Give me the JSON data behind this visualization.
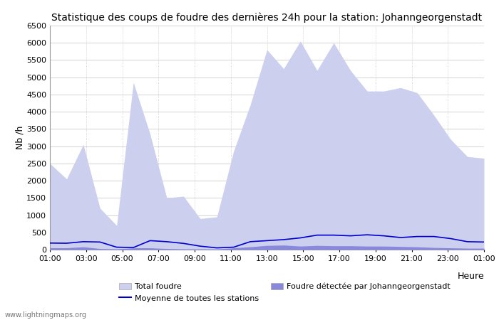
{
  "title": "Statistique des coups de foudre des dernières 24h pour la station: Johanngeorgenstadt",
  "xlabel": "Heure",
  "ylabel": "Nb /h",
  "watermark": "www.lightningmaps.org",
  "ylim": [
    0,
    6500
  ],
  "yticks": [
    0,
    500,
    1000,
    1500,
    2000,
    2500,
    3000,
    3500,
    4000,
    4500,
    5000,
    5500,
    6000,
    6500
  ],
  "hour_labels": [
    "01:00",
    "03:00",
    "05:00",
    "07:00",
    "09:00",
    "11:00",
    "13:00",
    "15:00",
    "17:00",
    "19:00",
    "21:00",
    "23:00",
    "01:00"
  ],
  "total_foudre": [
    2500,
    2050,
    3050,
    1200,
    700,
    4850,
    3350,
    1500,
    1550,
    900,
    950,
    2850,
    4200,
    5800,
    5250,
    6050,
    5200,
    6000,
    5200,
    4600,
    4600,
    4700,
    4550,
    3900,
    3200,
    2700,
    2650
  ],
  "local_foudre": [
    50,
    50,
    80,
    30,
    20,
    50,
    50,
    30,
    20,
    20,
    15,
    50,
    80,
    120,
    130,
    100,
    120,
    110,
    110,
    100,
    100,
    90,
    80,
    60,
    50,
    40,
    40
  ],
  "moyenne": [
    190,
    185,
    230,
    220,
    70,
    60,
    260,
    230,
    180,
    100,
    50,
    70,
    230,
    260,
    290,
    340,
    420,
    420,
    400,
    430,
    400,
    350,
    380,
    380,
    320,
    230,
    220
  ],
  "total_foudre_color": "#ccd0ee",
  "local_foudre_color": "#8888dd",
  "moyenne_color": "#0000cc",
  "bg_color": "#ffffff",
  "grid_color_h": "#cccccc",
  "grid_color_v": "#bbbbbb",
  "title_fontsize": 10,
  "axis_fontsize": 8,
  "legend_total": "Total foudre",
  "legend_local": "Foudre détectée par Johanngeorgenstadt",
  "legend_moyenne": "Moyenne de toutes les stations"
}
